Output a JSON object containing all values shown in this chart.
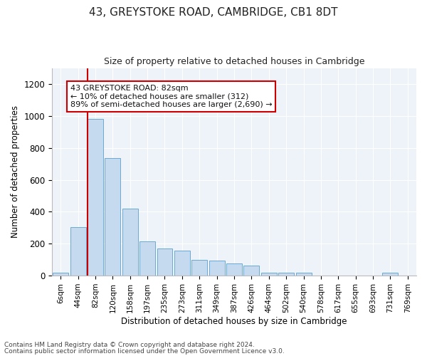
{
  "title1": "43, GREYSTOKE ROAD, CAMBRIDGE, CB1 8DT",
  "title2": "Size of property relative to detached houses in Cambridge",
  "xlabel": "Distribution of detached houses by size in Cambridge",
  "ylabel": "Number of detached properties",
  "categories": [
    "6sqm",
    "44sqm",
    "82sqm",
    "120sqm",
    "158sqm",
    "197sqm",
    "235sqm",
    "273sqm",
    "311sqm",
    "349sqm",
    "387sqm",
    "426sqm",
    "464sqm",
    "502sqm",
    "540sqm",
    "578sqm",
    "617sqm",
    "655sqm",
    "693sqm",
    "731sqm",
    "769sqm"
  ],
  "values": [
    20,
    305,
    980,
    735,
    420,
    215,
    170,
    155,
    100,
    95,
    75,
    65,
    20,
    20,
    20,
    0,
    0,
    0,
    0,
    20,
    0
  ],
  "bar_color": "#c5d9ef",
  "bar_edge_color": "#6aaad4",
  "vline_color": "#cc0000",
  "annotation_text": "43 GREYSTOKE ROAD: 82sqm\n← 10% of detached houses are smaller (312)\n89% of semi-detached houses are larger (2,690) →",
  "annotation_box_color": "#ffffff",
  "annotation_box_edge_color": "#cc0000",
  "footnote1": "Contains HM Land Registry data © Crown copyright and database right 2024.",
  "footnote2": "Contains public sector information licensed under the Open Government Licence v3.0.",
  "ylim": [
    0,
    1300
  ],
  "yticks": [
    0,
    200,
    400,
    600,
    800,
    1000,
    1200
  ],
  "plot_bg_color": "#eef2f9",
  "figsize": [
    6.0,
    5.0
  ],
  "dpi": 100
}
